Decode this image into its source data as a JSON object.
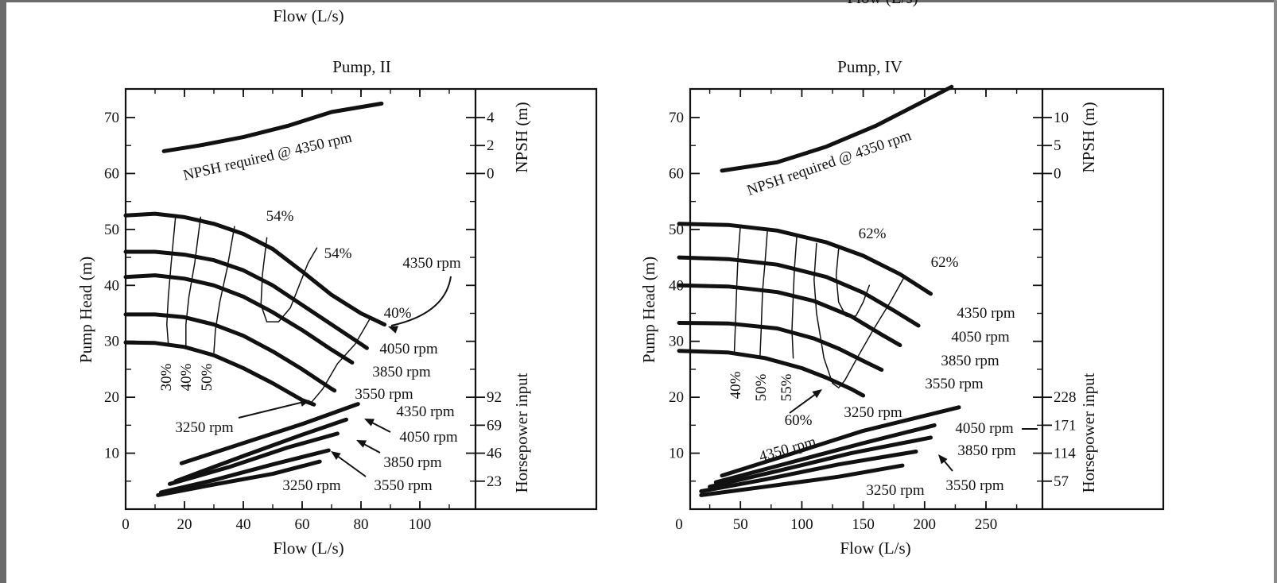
{
  "page": {
    "top_caption_left": "Flow (L/s)",
    "top_caption_right": "Flow (L/s)"
  },
  "chart_data": [
    {
      "type": "line",
      "title": "Pump, II",
      "xlabel": "Flow (L/s)",
      "ylabel": "Pump Head (m)",
      "xlim": [
        0,
        120
      ],
      "ylim": [
        0,
        75
      ],
      "xticks": [
        0,
        20,
        40,
        60,
        80,
        100
      ],
      "yticks": [
        10,
        20,
        30,
        40,
        50,
        60,
        70
      ],
      "right_axis_upper": {
        "label": "NPSH (m)",
        "ticks": [
          {
            "y": 70,
            "label": "4"
          },
          {
            "y": 65,
            "label": "2"
          },
          {
            "y": 60,
            "label": "0"
          }
        ]
      },
      "right_axis_lower": {
        "label": "Horsepower input",
        "ticks": [
          {
            "y": 20,
            "label": "92"
          },
          {
            "y": 15,
            "label": "69"
          },
          {
            "y": 10,
            "label": "46"
          },
          {
            "y": 5,
            "label": "23"
          }
        ]
      },
      "head_curves": [
        {
          "name": "4350 rpm",
          "points": [
            [
              0,
              52.5
            ],
            [
              10,
              52.8
            ],
            [
              20,
              52.2
            ],
            [
              30,
              51.0
            ],
            [
              40,
              49.2
            ],
            [
              50,
              46.5
            ],
            [
              60,
              42.5
            ],
            [
              70,
              38.3
            ],
            [
              80,
              35.0
            ],
            [
              88,
              33.0
            ]
          ]
        },
        {
          "name": "4050 rpm",
          "points": [
            [
              0,
              46.0
            ],
            [
              10,
              46.0
            ],
            [
              20,
              45.5
            ],
            [
              30,
              44.5
            ],
            [
              40,
              42.7
            ],
            [
              50,
              40.0
            ],
            [
              60,
              36.5
            ],
            [
              70,
              33.0
            ],
            [
              80,
              29.5
            ],
            [
              82,
              28.8
            ]
          ]
        },
        {
          "name": "3850 rpm",
          "points": [
            [
              0,
              41.5
            ],
            [
              10,
              41.8
            ],
            [
              20,
              41.2
            ],
            [
              30,
              40.0
            ],
            [
              40,
              38.0
            ],
            [
              50,
              35.2
            ],
            [
              60,
              32.0
            ],
            [
              70,
              28.5
            ],
            [
              77,
              26.2
            ]
          ]
        },
        {
          "name": "3550 rpm",
          "points": [
            [
              0,
              34.8
            ],
            [
              10,
              34.8
            ],
            [
              20,
              34.3
            ],
            [
              30,
              33.0
            ],
            [
              40,
              31.0
            ],
            [
              50,
              28.2
            ],
            [
              60,
              25.0
            ],
            [
              70,
              21.5
            ],
            [
              71,
              21.2
            ]
          ]
        },
        {
          "name": "3250 rpm",
          "points": [
            [
              0,
              29.8
            ],
            [
              10,
              29.7
            ],
            [
              20,
              29.0
            ],
            [
              30,
              27.5
            ],
            [
              40,
              25.2
            ],
            [
              50,
              22.5
            ],
            [
              60,
              19.5
            ],
            [
              64,
              18.7
            ]
          ]
        }
      ],
      "efficiency_lines": [
        {
          "label": "30%",
          "points": [
            [
              17,
              52.5
            ],
            [
              15.5,
              44
            ],
            [
              14.5,
              38
            ],
            [
              14,
              33
            ],
            [
              14.5,
              29.5
            ]
          ]
        },
        {
          "label": "40%",
          "points": [
            [
              25.5,
              52.2
            ],
            [
              23.5,
              44
            ],
            [
              21.5,
              38
            ],
            [
              20.5,
              33
            ],
            [
              20.5,
              29.2
            ]
          ]
        },
        {
          "label": "50%",
          "points": [
            [
              37,
              50.5
            ],
            [
              34.5,
              43
            ],
            [
              32,
              37
            ],
            [
              30.5,
              32
            ],
            [
              30,
              28
            ]
          ]
        },
        {
          "label": "54%",
          "points": [
            [
              48,
              48.5
            ],
            [
              46.5,
              42
            ],
            [
              46,
              36.5
            ],
            [
              48,
              33.5
            ],
            [
              52,
              33.5
            ],
            [
              56,
              36
            ],
            [
              59,
              40
            ],
            [
              62,
              44
            ],
            [
              65,
              46.7
            ]
          ]
        },
        {
          "label": "40%",
          "points": [
            [
              83,
              34
            ],
            [
              78,
              29.5
            ],
            [
              72,
              26
            ],
            [
              67,
              21.5
            ],
            [
              63,
              19
            ]
          ]
        }
      ],
      "npsh_curve": {
        "label": "NPSH required @ 4350 rpm",
        "points": [
          [
            13,
            64
          ],
          [
            25,
            65
          ],
          [
            40,
            66.5
          ],
          [
            55,
            68.5
          ],
          [
            70,
            71
          ],
          [
            87,
            72.5
          ]
        ]
      },
      "power_curves": [
        {
          "name": "4350 rpm",
          "points": [
            [
              19,
              8.2
            ],
            [
              40,
              11.8
            ],
            [
              60,
              15.2
            ],
            [
              79,
              18.8
            ]
          ]
        },
        {
          "name": "4050 rpm",
          "points": [
            [
              17,
              5.0
            ],
            [
              40,
              9.5
            ],
            [
              60,
              13.3
            ],
            [
              75,
              16.0
            ]
          ]
        },
        {
          "name": "3850 rpm",
          "points": [
            [
              15,
              4.5
            ],
            [
              35,
              7.5
            ],
            [
              55,
              11
            ],
            [
              72,
              13.5
            ]
          ]
        },
        {
          "name": "3550 rpm",
          "points": [
            [
              12,
              3.0
            ],
            [
              30,
              5.2
            ],
            [
              50,
              8.0
            ],
            [
              69,
              10.5
            ]
          ]
        },
        {
          "name": "3250 rpm",
          "points": [
            [
              11,
              2.5
            ],
            [
              30,
              4.4
            ],
            [
              50,
              6.3
            ],
            [
              66,
              8.5
            ]
          ]
        }
      ],
      "annotations": [
        "54%",
        "54%",
        "40%",
        "4350 rpm",
        "4050 rpm",
        "3850 rpm",
        "3550 rpm",
        "3250 rpm",
        "30%",
        "40%",
        "50%",
        "4350 rpm",
        "4050 rpm",
        "3850 rpm",
        "3550 rpm",
        "3250 rpm"
      ]
    },
    {
      "type": "line",
      "title": "Pump, IV",
      "xlabel": "Flow (L/s)",
      "ylabel": "Pump Head (m)",
      "xlim": [
        0,
        300
      ],
      "ylim": [
        0,
        75
      ],
      "xticks": [
        0,
        50,
        100,
        150,
        200,
        250
      ],
      "yticks": [
        10,
        20,
        30,
        40,
        50,
        60,
        70
      ],
      "right_axis_upper": {
        "label": "NPSH (m)",
        "ticks": [
          {
            "y": 70,
            "label": "10"
          },
          {
            "y": 65,
            "label": "5"
          },
          {
            "y": 60,
            "label": "0"
          }
        ]
      },
      "right_axis_lower": {
        "label": "Horsepower input",
        "ticks": [
          {
            "y": 20,
            "label": "228"
          },
          {
            "y": 15,
            "label": "171"
          },
          {
            "y": 10,
            "label": "114"
          },
          {
            "y": 5,
            "label": "57"
          }
        ]
      },
      "head_curves": [
        {
          "name": "4350 rpm",
          "points": [
            [
              0,
              51.0
            ],
            [
              40,
              50.8
            ],
            [
              80,
              49.8
            ],
            [
              120,
              47.7
            ],
            [
              150,
              45.3
            ],
            [
              180,
              42.0
            ],
            [
              205,
              38.5
            ]
          ]
        },
        {
          "name": "4050 rpm",
          "points": [
            [
              0,
              45.0
            ],
            [
              40,
              44.7
            ],
            [
              80,
              43.7
            ],
            [
              120,
              41.5
            ],
            [
              150,
              38.7
            ],
            [
              175,
              35.5
            ],
            [
              195,
              32.8
            ]
          ]
        },
        {
          "name": "3850 rpm",
          "points": [
            [
              0,
              40.0
            ],
            [
              40,
              39.8
            ],
            [
              80,
              38.8
            ],
            [
              110,
              37.2
            ],
            [
              140,
              34.5
            ],
            [
              165,
              31.2
            ],
            [
              180,
              29.3
            ]
          ]
        },
        {
          "name": "3550 rpm",
          "points": [
            [
              0,
              33.3
            ],
            [
              40,
              33.2
            ],
            [
              80,
              32.3
            ],
            [
              110,
              30.5
            ],
            [
              130,
              28.7
            ],
            [
              150,
              26.5
            ],
            [
              165,
              24.9
            ]
          ]
        },
        {
          "name": "3250 rpm",
          "points": [
            [
              0,
              28.3
            ],
            [
              40,
              28.0
            ],
            [
              70,
              27.0
            ],
            [
              100,
              25.2
            ],
            [
              120,
              23.5
            ],
            [
              140,
              21.5
            ],
            [
              150,
              20.3
            ]
          ]
        }
      ],
      "efficiency_lines": [
        {
          "label": "40%",
          "points": [
            [
              50,
              50.7
            ],
            [
              48,
              45
            ],
            [
              47,
              40
            ],
            [
              46,
              33.5
            ],
            [
              45,
              28
            ]
          ]
        },
        {
          "label": "50%",
          "points": [
            [
              72,
              50
            ],
            [
              70,
              44
            ],
            [
              68,
              39
            ],
            [
              67,
              32.5
            ],
            [
              66,
              27.5
            ]
          ]
        },
        {
          "label": "55%",
          "points": [
            [
              96,
              49
            ],
            [
              94,
              43
            ],
            [
              93,
              38
            ],
            [
              92,
              32
            ],
            [
              93,
              27
            ]
          ]
        },
        {
          "label": "62%",
          "points": [
            [
              130,
              46.5
            ],
            [
              128,
              41.8
            ],
            [
              130,
              37
            ],
            [
              136,
              34.5
            ],
            [
              144,
              34.5
            ],
            [
              150,
              37
            ],
            [
              155,
              40
            ]
          ]
        },
        {
          "label": "60%",
          "points": [
            [
              112,
              47.5
            ],
            [
              110,
              41
            ],
            [
              112,
              35
            ],
            [
              118,
              27
            ],
            [
              125,
              22.5
            ],
            [
              130,
              21.7
            ],
            [
              135,
              23
            ],
            [
              145,
              27
            ],
            [
              158,
              32
            ],
            [
              172,
              37
            ],
            [
              184,
              41.7
            ]
          ]
        }
      ],
      "npsh_curve": {
        "label": "NPSH required @ 4350 rpm",
        "points": [
          [
            35,
            60.5
          ],
          [
            80,
            62
          ],
          [
            120,
            64.8
          ],
          [
            160,
            68.5
          ],
          [
            200,
            73
          ],
          [
            222,
            75.5
          ]
        ]
      },
      "power_curves": [
        {
          "name": "4350 rpm",
          "points": [
            [
              35,
              6.0
            ],
            [
              90,
              9.8
            ],
            [
              150,
              14.0
            ],
            [
              228,
              18.2
            ]
          ]
        },
        {
          "name": "4050 rpm",
          "points": [
            [
              30,
              4.8
            ],
            [
              90,
              8.3
            ],
            [
              150,
              11.8
            ],
            [
              208,
              15.0
            ]
          ]
        },
        {
          "name": "3850 rpm",
          "points": [
            [
              25,
              4.0
            ],
            [
              80,
              6.8
            ],
            [
              140,
              10.0
            ],
            [
              205,
              12.8
            ]
          ]
        },
        {
          "name": "3550 rpm",
          "points": [
            [
              18,
              3.2
            ],
            [
              70,
              5.3
            ],
            [
              130,
              8.0
            ],
            [
              193,
              10.3
            ]
          ]
        },
        {
          "name": "3250 rpm",
          "points": [
            [
              18,
              2.5
            ],
            [
              70,
              4.0
            ],
            [
              130,
              5.8
            ],
            [
              182,
              7.8
            ]
          ]
        }
      ],
      "annotations": [
        "62%",
        "62%",
        "4350 rpm",
        "4050 rpm",
        "3850 rpm",
        "3550 rpm",
        "3250 rpm",
        "40%",
        "50%",
        "55%",
        "60%",
        "4350 rpm",
        "4050 rpm",
        "3850 rpm",
        "3550 rpm",
        "3250 rpm"
      ]
    }
  ]
}
